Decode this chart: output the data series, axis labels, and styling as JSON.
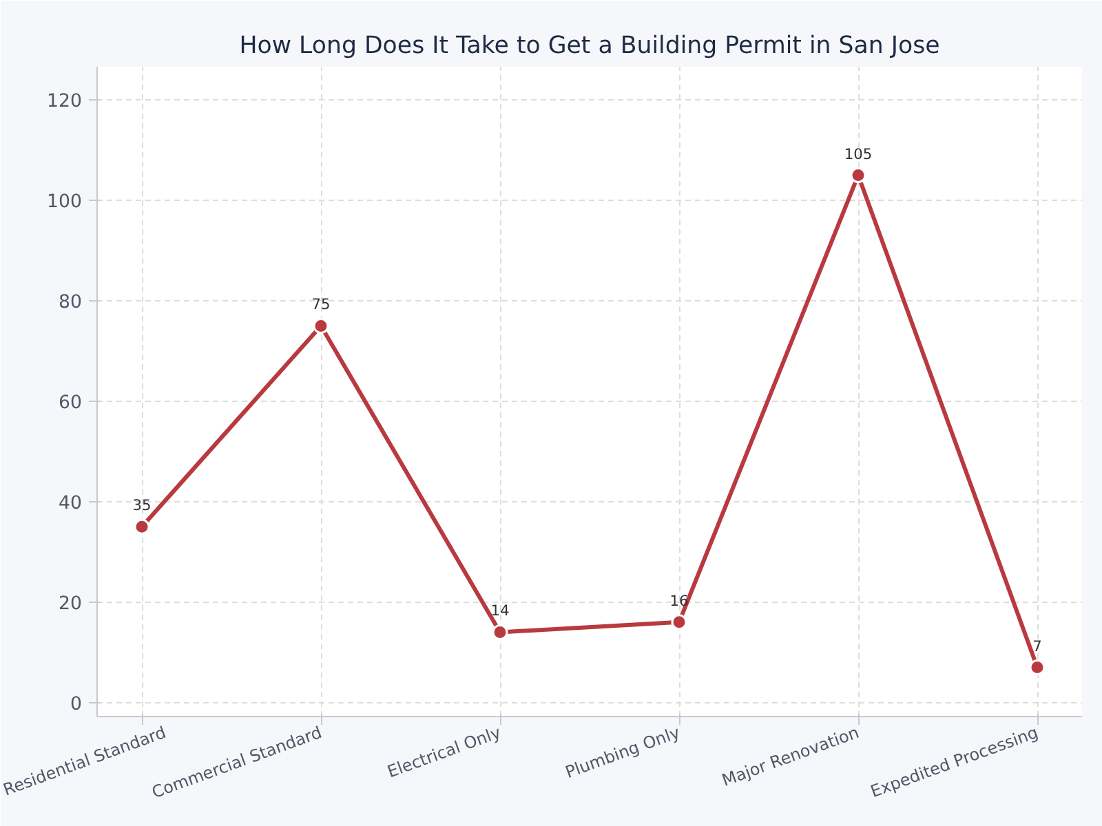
{
  "chart_data": {
    "type": "line",
    "title": "How Long Does It Take to Get a Building Permit in San Jose",
    "categories": [
      "Residential Standard",
      "Commercial Standard",
      "Electrical Only",
      "Plumbing Only",
      "Major Renovation",
      "Expedited Processing"
    ],
    "series": [
      {
        "color": "#b83a3f",
        "values": [
          35,
          75,
          14,
          16,
          105,
          7
        ]
      }
    ],
    "ylim": [
      -2.8,
      126.6
    ],
    "yticks": [
      0,
      20,
      40,
      60,
      80,
      100,
      120
    ],
    "grid": true,
    "marker": "circle",
    "line_style": "solid",
    "data_labels": true
  }
}
